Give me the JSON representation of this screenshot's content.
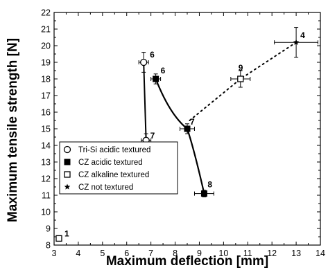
{
  "chart_data": {
    "type": "scatter",
    "xlabel": "Maximum deflection [mm]",
    "ylabel": "Maximum tensile strength [N]",
    "xlim": [
      3,
      14
    ],
    "ylim": [
      8,
      22
    ],
    "xticks": [
      "3",
      "4",
      "5",
      "6",
      "7",
      "8",
      "9",
      "10",
      "11",
      "12",
      "13",
      "14"
    ],
    "yticks": [
      "8",
      "9",
      "10",
      "11",
      "12",
      "13",
      "14",
      "15",
      "16",
      "17",
      "18",
      "19",
      "20",
      "21",
      "22"
    ],
    "grid": false,
    "legend_position": "bottom-left",
    "series": [
      {
        "name": "Tri-Si acidic textured",
        "marker": "open-circle",
        "line": "solid",
        "points": [
          {
            "x": 6.7,
            "y": 19.0,
            "label": "6",
            "xerr": 0.2,
            "yerr": 0.6
          },
          {
            "x": 6.8,
            "y": 14.3,
            "label": "7",
            "xerr": 0.2,
            "yerr": 0.4
          }
        ]
      },
      {
        "name": "CZ acidic textured",
        "marker": "filled-square",
        "line": "solid",
        "points": [
          {
            "x": 7.2,
            "y": 18.0,
            "label": "6",
            "xerr": 0.2,
            "yerr": 0.3
          },
          {
            "x": 8.5,
            "y": 15.0,
            "label": "7",
            "xerr": 0.3,
            "yerr": 0.3
          },
          {
            "x": 9.2,
            "y": 11.1,
            "label": "8",
            "xerr": 0.4,
            "yerr": 0.2
          }
        ]
      },
      {
        "name": "CZ alkaline textured",
        "marker": "open-square",
        "line": "dotted",
        "points": [
          {
            "x": 10.7,
            "y": 18.0,
            "label": "9",
            "xerr": 0.4,
            "yerr": 0.5
          },
          {
            "x": 3.2,
            "y": 8.4,
            "label": "1",
            "xerr": 0.1,
            "yerr": 0.1
          }
        ]
      },
      {
        "name": "CZ not textured",
        "marker": "star",
        "line": "dotted",
        "points": [
          {
            "x": 13.0,
            "y": 20.2,
            "label": "4",
            "xerr": 0.9,
            "yerr": 0.9
          }
        ]
      }
    ],
    "dotted_trend": [
      [
        8.6,
        15.5
      ],
      [
        10.7,
        18.0
      ],
      [
        13.0,
        20.2
      ]
    ]
  }
}
